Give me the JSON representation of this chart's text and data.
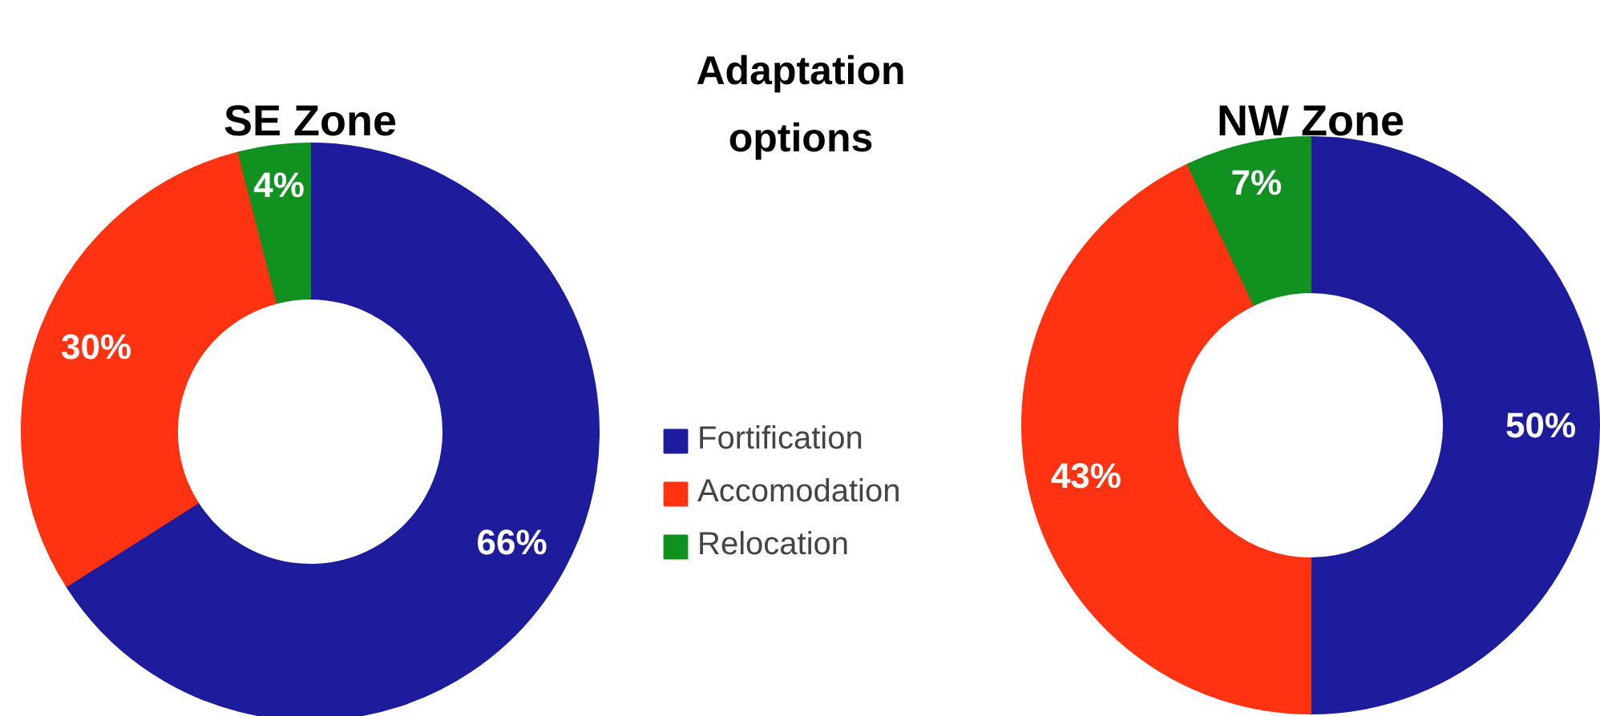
{
  "chart_data": [
    {
      "type": "donut",
      "title": "SE Zone",
      "legend_title": "Adaptation options",
      "legend": "right",
      "categories": [
        "Fortification",
        "Accomodation",
        "Relocation"
      ],
      "values": [
        66,
        30,
        4
      ],
      "value_labels": [
        "66%",
        "30%",
        "4%"
      ],
      "colors": [
        "#1c1c9c",
        "#ff3311",
        "#11911f"
      ]
    },
    {
      "type": "donut",
      "title": "NW Zone",
      "categories": [
        null,
        null,
        null
      ],
      "values": [
        50,
        43,
        7
      ],
      "value_labels": [
        "50%",
        "43%",
        "7%"
      ],
      "colors": [
        "#1c1c9c",
        "#ff3311",
        "#11911f"
      ]
    }
  ]
}
